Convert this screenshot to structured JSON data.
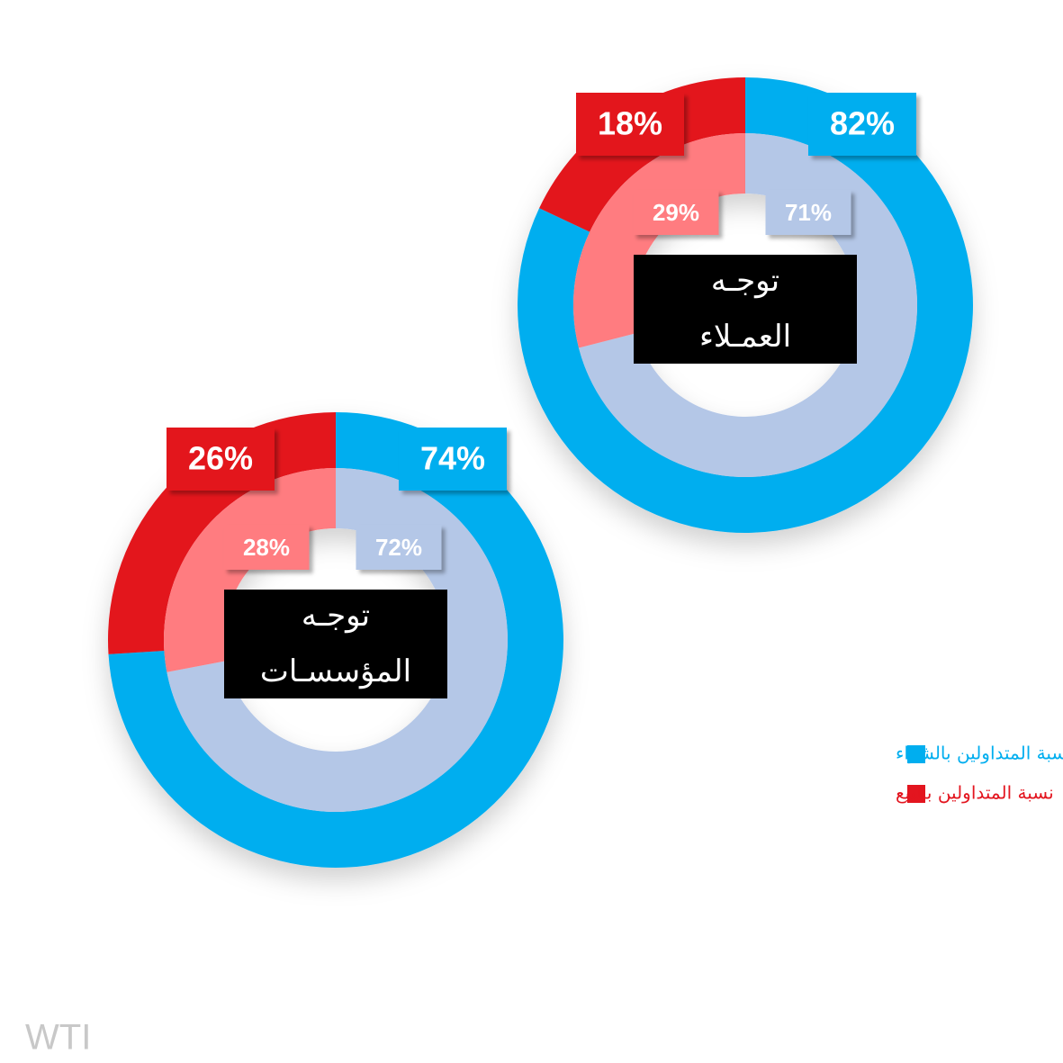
{
  "chart_data": [
    {
      "type": "donut",
      "title": [
        "توجـه",
        "العمـلاء"
      ],
      "rings": [
        {
          "values": [
            82,
            18
          ],
          "value_labels": [
            "82%",
            "18%"
          ],
          "colors": [
            "#00aeef",
            "#e3151f"
          ]
        },
        {
          "values": [
            71,
            29
          ],
          "value_labels": [
            "71%",
            "29%"
          ],
          "colors": [
            "#b4c7e7",
            "#ff7c80"
          ]
        }
      ]
    },
    {
      "type": "donut",
      "title": [
        "توجـه",
        "المؤسسـات"
      ],
      "rings": [
        {
          "values": [
            74,
            26
          ],
          "value_labels": [
            "74%",
            "26%"
          ],
          "colors": [
            "#00aeef",
            "#e3151f"
          ]
        },
        {
          "values": [
            72,
            28
          ],
          "value_labels": [
            "72%",
            "28%"
          ],
          "colors": [
            "#b4c7e7",
            "#ff7c80"
          ]
        }
      ]
    }
  ],
  "legend": [
    {
      "name": "نسبة المتداولين بالشراء",
      "color": "#00aeef"
    },
    {
      "name": "نسبة المتداولين بالبيع",
      "color": "#e3151f"
    }
  ],
  "footer": "WTI"
}
